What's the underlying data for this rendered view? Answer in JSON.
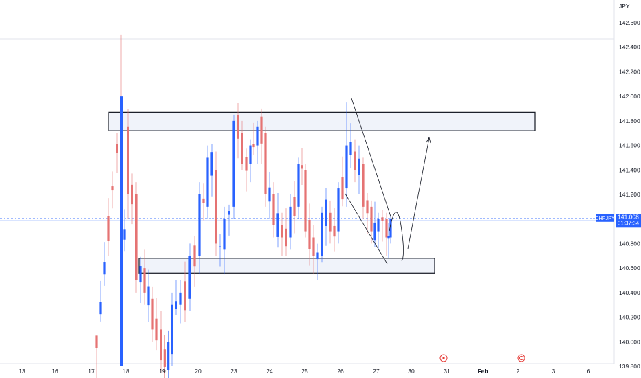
{
  "chart_data": {
    "type": "candlestick",
    "currency_label": "JPY",
    "y_ticks": [
      "142.600",
      "142.400",
      "142.200",
      "142.000",
      "141.800",
      "141.600",
      "141.400",
      "141.200",
      "141.000",
      "140.800",
      "140.600",
      "140.400",
      "140.200",
      "140.000",
      "139.800"
    ],
    "y_tick_values": [
      142.6,
      142.4,
      142.2,
      142.0,
      141.8,
      141.6,
      141.4,
      141.2,
      141.0,
      140.8,
      140.6,
      140.4,
      140.2,
      140.0,
      139.8
    ],
    "ylim": [
      139.75,
      142.75
    ],
    "x_ticks": [
      "13",
      "16",
      "17",
      "18",
      "19",
      "20",
      "23",
      "24",
      "25",
      "26",
      "27",
      "30",
      "31",
      "Feb",
      "2",
      "3",
      "6"
    ],
    "symbol_badge": {
      "label": "CHFJPY",
      "price": "141.008",
      "countdown": "01:37:34",
      "value": 141.008
    },
    "colors": {
      "up": "#2962ff",
      "down": "#e57373",
      "badge": "#2962ff",
      "zones": "#f0f3fa"
    },
    "zones": [
      {
        "name": "resistance",
        "low": 141.72,
        "high": 141.87
      },
      {
        "name": "support",
        "low": 140.56,
        "high": 140.68
      }
    ],
    "projection": "arrow-up",
    "event_icons": [
      "event-icon",
      "event-icon"
    ]
  }
}
